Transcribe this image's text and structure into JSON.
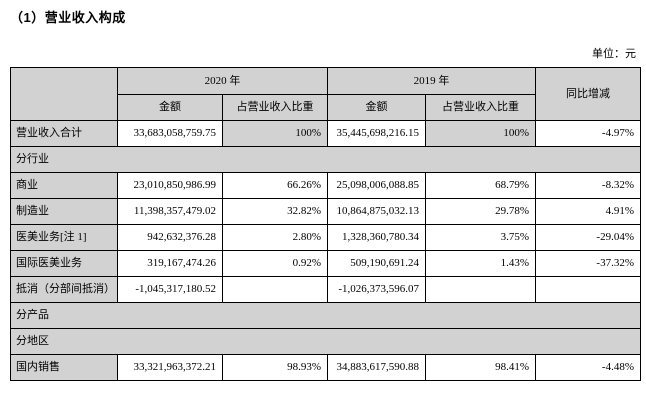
{
  "page": {
    "title": "（1）营业收入构成",
    "unit_label": "单位：元"
  },
  "table": {
    "columns": {
      "year_2020": "2020 年",
      "year_2019": "2019 年",
      "amount": "金额",
      "ratio": "占营业收入比重",
      "yoy": "同比增减"
    },
    "rows": [
      {
        "type": "data",
        "label": "营业收入合计",
        "amount_2020": "33,683,058,759.75",
        "ratio_2020": "100%",
        "amount_2019": "35,445,698,216.15",
        "ratio_2019": "100%",
        "yoy": "-4.97%",
        "ratio_cells_shaded": true
      },
      {
        "type": "section",
        "label": "分行业"
      },
      {
        "type": "data",
        "label": "商业",
        "amount_2020": "23,010,850,986.99",
        "ratio_2020": "66.26%",
        "amount_2019": "25,098,006,088.85",
        "ratio_2019": "68.79%",
        "yoy": "-8.32%"
      },
      {
        "type": "data",
        "label": "制造业",
        "amount_2020": "11,398,357,479.02",
        "ratio_2020": "32.82%",
        "amount_2019": "10,864,875,032.13",
        "ratio_2019": "29.78%",
        "yoy": "4.91%"
      },
      {
        "type": "data",
        "label": "医美业务[注 1]",
        "amount_2020": "942,632,376.28",
        "ratio_2020": "2.80%",
        "amount_2019": "1,328,360,780.34",
        "ratio_2019": "3.75%",
        "yoy": "-29.04%"
      },
      {
        "type": "data",
        "label": "国际医美业务",
        "amount_2020": "319,167,474.26",
        "ratio_2020": "0.92%",
        "amount_2019": "509,190,691.24",
        "ratio_2019": "1.43%",
        "yoy": "-37.32%"
      },
      {
        "type": "data",
        "label": "抵消（分部间抵消）",
        "amount_2020": "-1,045,317,180.52",
        "ratio_2020": "",
        "amount_2019": "-1,026,373,596.07",
        "ratio_2019": "",
        "yoy": ""
      },
      {
        "type": "section",
        "label": "分产品"
      },
      {
        "type": "section",
        "label": "分地区"
      },
      {
        "type": "data",
        "label": "国内销售",
        "amount_2020": "33,321,963,372.21",
        "ratio_2020": "98.93%",
        "amount_2019": "34,883,617,590.88",
        "ratio_2019": "98.41%",
        "yoy": "-4.48%"
      }
    ]
  },
  "colors": {
    "shaded_cell_bg": "#d2d2d2",
    "border": "#000000",
    "text": "#000000",
    "page_bg": "#ffffff"
  }
}
